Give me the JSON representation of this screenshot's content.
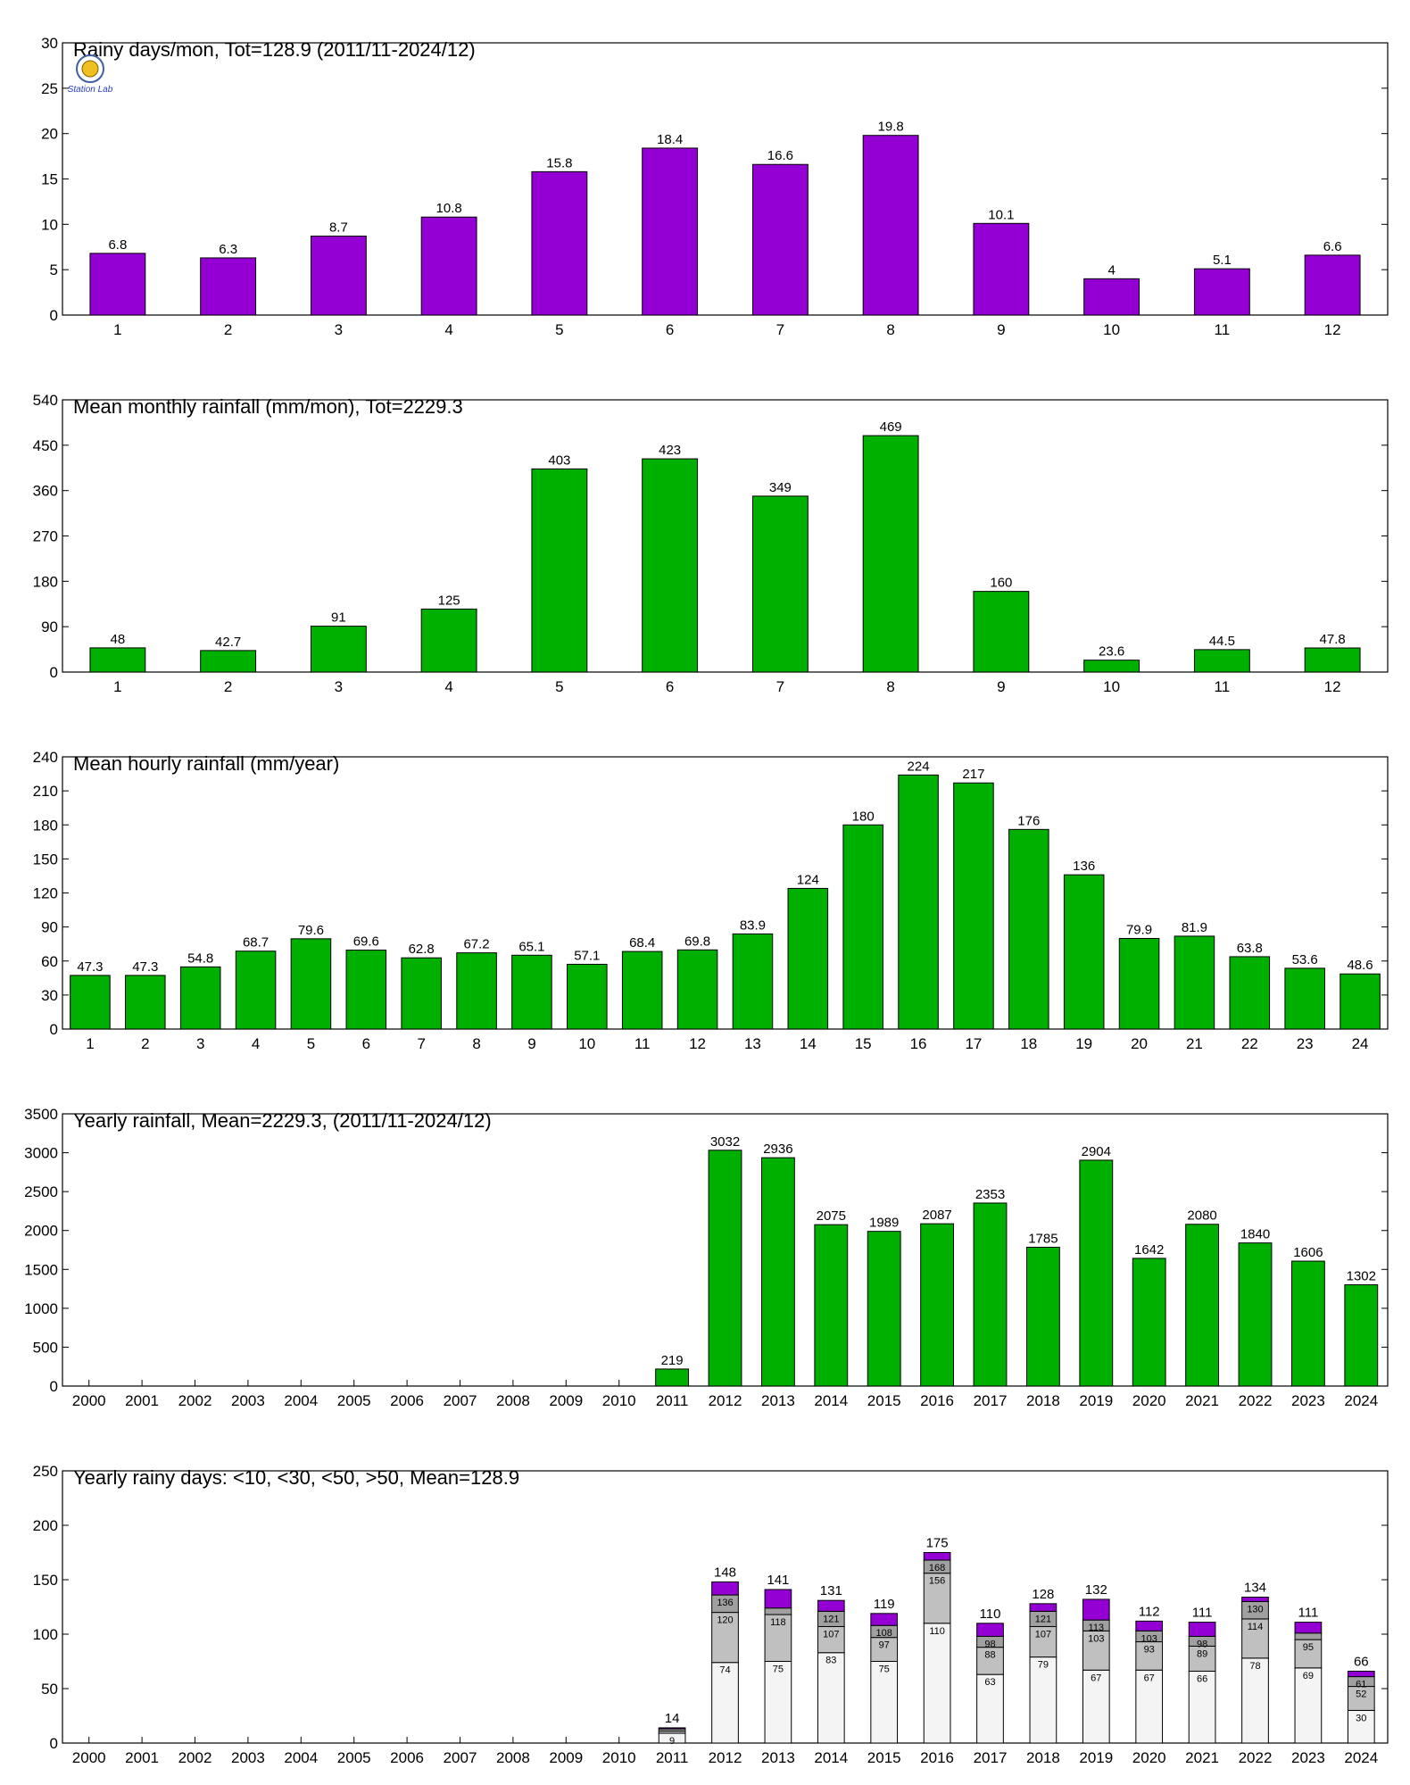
{
  "colors": {
    "purple": "#9400d3",
    "green": "#00b000",
    "light": "#f4f4f4",
    "mid": "#c0c0c0",
    "dark": "#a0a0a0"
  },
  "logo": {
    "text": "Station Lab"
  },
  "chart_data": [
    {
      "type": "bar",
      "title": "Rainy days/mon, Tot=128.9 (2011/11-2024/12)",
      "color": "#9400d3",
      "categories": [
        "1",
        "2",
        "3",
        "4",
        "5",
        "6",
        "7",
        "8",
        "9",
        "10",
        "11",
        "12"
      ],
      "values": [
        6.8,
        6.3,
        8.7,
        10.8,
        15.8,
        18.4,
        16.6,
        19.8,
        10.1,
        4,
        5.1,
        6.6
      ],
      "labels": [
        "6.8",
        "6.3",
        "8.7",
        "10.8",
        "15.8",
        "18.4",
        "16.6",
        "19.8",
        "10.1",
        "4",
        "5.1",
        "6.6"
      ],
      "ylim": [
        0,
        30
      ],
      "yticks": [
        0,
        5,
        10,
        15,
        20,
        25,
        30
      ]
    },
    {
      "type": "bar",
      "title": "Mean monthly rainfall (mm/mon), Tot=2229.3",
      "color": "#00b000",
      "categories": [
        "1",
        "2",
        "3",
        "4",
        "5",
        "6",
        "7",
        "8",
        "9",
        "10",
        "11",
        "12"
      ],
      "values": [
        48,
        42.7,
        91,
        125,
        403,
        423,
        349,
        469,
        160,
        23.6,
        44.5,
        47.8
      ],
      "labels": [
        "48",
        "42.7",
        "91",
        "125",
        "403",
        "423",
        "349",
        "469",
        "160",
        "23.6",
        "44.5",
        "47.8"
      ],
      "ylim": [
        0,
        540
      ],
      "yticks": [
        0,
        90,
        180,
        270,
        360,
        450,
        540
      ]
    },
    {
      "type": "bar",
      "title": "Mean hourly rainfall (mm/year)",
      "color": "#00b000",
      "categories": [
        "1",
        "2",
        "3",
        "4",
        "5",
        "6",
        "7",
        "8",
        "9",
        "10",
        "11",
        "12",
        "13",
        "14",
        "15",
        "16",
        "17",
        "18",
        "19",
        "20",
        "21",
        "22",
        "23",
        "24"
      ],
      "values": [
        47.3,
        47.3,
        54.8,
        68.7,
        79.6,
        69.6,
        62.8,
        67.2,
        65.1,
        57.1,
        68.4,
        69.8,
        83.9,
        124,
        180,
        224,
        217,
        176,
        136,
        79.9,
        81.9,
        63.8,
        53.6,
        48.6
      ],
      "labels": [
        "47.3",
        "47.3",
        "54.8",
        "68.7",
        "79.6",
        "69.6",
        "62.8",
        "67.2",
        "65.1",
        "57.1",
        "68.4",
        "69.8",
        "83.9",
        "124",
        "180",
        "224",
        "217",
        "176",
        "136",
        "79.9",
        "81.9",
        "63.8",
        "53.6",
        "48.6"
      ],
      "ylim": [
        0,
        240
      ],
      "yticks": [
        0,
        30,
        60,
        90,
        120,
        150,
        180,
        210,
        240
      ]
    },
    {
      "type": "bar",
      "title": "Yearly rainfall, Mean=2229.3, (2011/11-2024/12)",
      "color": "#00b000",
      "categories": [
        "2000",
        "2001",
        "2002",
        "2003",
        "2004",
        "2005",
        "2006",
        "2007",
        "2008",
        "2009",
        "2010",
        "2011",
        "2012",
        "2013",
        "2014",
        "2015",
        "2016",
        "2017",
        "2018",
        "2019",
        "2020",
        "2021",
        "2022",
        "2023",
        "2024"
      ],
      "values": [
        null,
        null,
        null,
        null,
        null,
        null,
        null,
        null,
        null,
        null,
        null,
        219,
        3032,
        2936,
        2075,
        1989,
        2087,
        2353,
        1785,
        2904,
        1642,
        2080,
        1840,
        1606,
        1302
      ],
      "labels": [
        "",
        "",
        "",
        "",
        "",
        "",
        "",
        "",
        "",
        "",
        "",
        "219",
        "3032",
        "2936",
        "2075",
        "1989",
        "2087",
        "2353",
        "1785",
        "2904",
        "1642",
        "2080",
        "1840",
        "1606",
        "1302"
      ],
      "ylim": [
        0,
        3500
      ],
      "yticks": [
        0,
        500,
        1000,
        1500,
        2000,
        2500,
        3000,
        3500
      ]
    },
    {
      "type": "bar",
      "stacked": true,
      "title": "Yearly rainy days: <10, <30, <50, >50, Mean=128.9",
      "categories": [
        "2000",
        "2001",
        "2002",
        "2003",
        "2004",
        "2005",
        "2006",
        "2007",
        "2008",
        "2009",
        "2010",
        "2011",
        "2012",
        "2013",
        "2014",
        "2015",
        "2016",
        "2017",
        "2018",
        "2019",
        "2020",
        "2021",
        "2022",
        "2023",
        "2024"
      ],
      "cumulative": [
        null,
        null,
        null,
        null,
        null,
        null,
        null,
        null,
        null,
        null,
        null,
        [
          9,
          11,
          13,
          14
        ],
        [
          74,
          120,
          136,
          148
        ],
        [
          75,
          118,
          124,
          141
        ],
        [
          83,
          107,
          121,
          131
        ],
        [
          75,
          97,
          108,
          119
        ],
        [
          110,
          156,
          168,
          175
        ],
        [
          63,
          88,
          98,
          110
        ],
        [
          79,
          107,
          121,
          128
        ],
        [
          67,
          103,
          113,
          132
        ],
        [
          67,
          93,
          103,
          112
        ],
        [
          66,
          89,
          98,
          111
        ],
        [
          78,
          114,
          130,
          134
        ],
        [
          69,
          95,
          101,
          111
        ],
        [
          30,
          52,
          61,
          66
        ]
      ],
      "totals": [
        "",
        "",
        "",
        "",
        "",
        "",
        "",
        "",
        "",
        "",
        "",
        "14",
        "148",
        "141",
        "131",
        "119",
        "175",
        "110",
        "128",
        "132",
        "112",
        "111",
        "134",
        "111",
        "66"
      ],
      "segment_colors": [
        "#f4f4f4",
        "#c0c0c0",
        "#a0a0a0",
        "#9400d3"
      ],
      "ylim": [
        0,
        250
      ],
      "yticks": [
        0,
        50,
        100,
        150,
        200,
        250
      ]
    }
  ]
}
